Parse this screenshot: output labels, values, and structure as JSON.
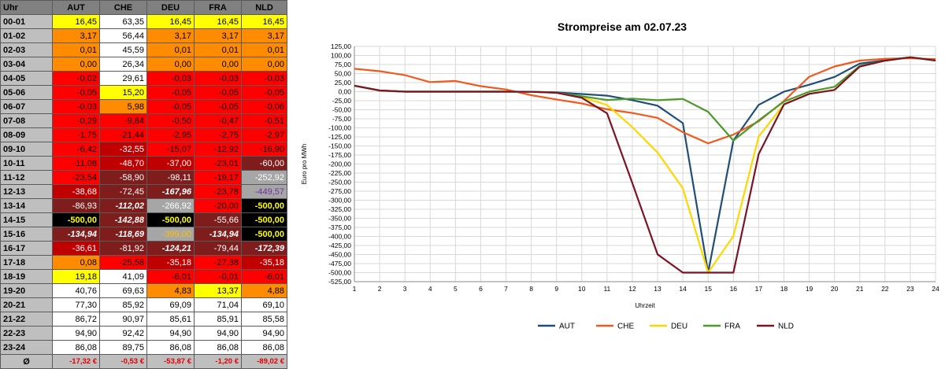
{
  "table": {
    "corner": "Uhr",
    "columns": [
      "AUT",
      "CHE",
      "DEU",
      "FRA",
      "NLD"
    ],
    "rows": [
      {
        "h": "00-01",
        "v": [
          "16,45",
          "63,35",
          "16,45",
          "16,45",
          "16,45"
        ],
        "c": [
          "yellow",
          "white",
          "yellow",
          "yellow",
          "yellow"
        ]
      },
      {
        "h": "01-02",
        "v": [
          "3,17",
          "56,44",
          "3,17",
          "3,17",
          "3,17"
        ],
        "c": [
          "orange",
          "white",
          "orange",
          "orange",
          "orange"
        ]
      },
      {
        "h": "02-03",
        "v": [
          "0,01",
          "45,59",
          "0,01",
          "0,01",
          "0,01"
        ],
        "c": [
          "orange",
          "white",
          "orange",
          "orange",
          "orange"
        ]
      },
      {
        "h": "03-04",
        "v": [
          "0,00",
          "26,34",
          "0,00",
          "0,00",
          "0,00"
        ],
        "c": [
          "orange",
          "white",
          "orange",
          "orange",
          "orange"
        ]
      },
      {
        "h": "04-05",
        "v": [
          "-0,02",
          "29,61",
          "-0,03",
          "-0,03",
          "-0,03"
        ],
        "c": [
          "red",
          "white",
          "red",
          "red",
          "red"
        ]
      },
      {
        "h": "05-06",
        "v": [
          "-0,05",
          "15,20",
          "-0,05",
          "-0,05",
          "-0,05"
        ],
        "c": [
          "red",
          "yellow",
          "red",
          "red",
          "red"
        ]
      },
      {
        "h": "06-07",
        "v": [
          "-0,03",
          "5,98",
          "-0,05",
          "-0,05",
          "-0,06"
        ],
        "c": [
          "red",
          "orange",
          "red",
          "red",
          "red"
        ]
      },
      {
        "h": "07-08",
        "v": [
          "-0,29",
          "-9,84",
          "-0,50",
          "-0,47",
          "-0,51"
        ],
        "c": [
          "red",
          "red",
          "red",
          "red",
          "red"
        ]
      },
      {
        "h": "08-09",
        "v": [
          "-1,75",
          "-21,44",
          "-2,95",
          "-2,75",
          "-2,97"
        ],
        "c": [
          "red",
          "red",
          "red",
          "red",
          "red"
        ]
      },
      {
        "h": "09-10",
        "v": [
          "-6,42",
          "-32,55",
          "-15,07",
          "-12,92",
          "-16,90"
        ],
        "c": [
          "red",
          "dred",
          "red",
          "red",
          "red"
        ]
      },
      {
        "h": "10-11",
        "v": [
          "-11,08",
          "-48,70",
          "-37,00",
          "-23,01",
          "-60,00"
        ],
        "c": [
          "red",
          "dred",
          "dred",
          "red",
          "maroon"
        ]
      },
      {
        "h": "11-12",
        "v": [
          "-23,54",
          "-58,90",
          "-98,11",
          "-19,17",
          "-252,92"
        ],
        "c": [
          "red",
          "maroon",
          "maroon",
          "red",
          "gray"
        ]
      },
      {
        "h": "12-13",
        "v": [
          "-38,68",
          "-72,45",
          "-167,96",
          "-23,78",
          "-449,57"
        ],
        "c": [
          "dred",
          "maroon",
          "maroonb",
          "red",
          "grayp"
        ]
      },
      {
        "h": "13-14",
        "v": [
          "-86,93",
          "-112,02",
          "-266,92",
          "-20,00",
          "-500,00"
        ],
        "c": [
          "maroon",
          "maroonb",
          "gray",
          "red",
          "black"
        ]
      },
      {
        "h": "14-15",
        "v": [
          "-500,00",
          "-142,88",
          "-500,00",
          "-55,66",
          "-500,00"
        ],
        "c": [
          "black",
          "maroonb",
          "black",
          "maroon",
          "black"
        ]
      },
      {
        "h": "15-16",
        "v": [
          "-134,94",
          "-118,69",
          "-399,00",
          "-134,94",
          "-500,00"
        ],
        "c": [
          "maroonb",
          "maroonb",
          "grayo",
          "maroonb",
          "black"
        ]
      },
      {
        "h": "16-17",
        "v": [
          "-36,61",
          "-81,92",
          "-124,21",
          "-79,44",
          "-172,39"
        ],
        "c": [
          "dred",
          "maroon",
          "maroonb",
          "maroon",
          "maroonb"
        ]
      },
      {
        "h": "17-18",
        "v": [
          "0,08",
          "-25,58",
          "-35,18",
          "-27,38",
          "-35,18"
        ],
        "c": [
          "orange",
          "red",
          "dred",
          "red",
          "dred"
        ]
      },
      {
        "h": "18-19",
        "v": [
          "19,18",
          "41,09",
          "-6,01",
          "-0,01",
          "-6,01"
        ],
        "c": [
          "yellow",
          "white",
          "red",
          "red",
          "red"
        ]
      },
      {
        "h": "19-20",
        "v": [
          "40,76",
          "69,63",
          "4,83",
          "13,37",
          "4,88"
        ],
        "c": [
          "white",
          "white",
          "orange",
          "yellow",
          "orange"
        ]
      },
      {
        "h": "20-21",
        "v": [
          "77,30",
          "85,92",
          "69,09",
          "71,04",
          "69,10"
        ],
        "c": [
          "white",
          "white",
          "white",
          "white",
          "white"
        ]
      },
      {
        "h": "21-22",
        "v": [
          "86,72",
          "90,97",
          "85,61",
          "85,91",
          "85,58"
        ],
        "c": [
          "white",
          "white",
          "white",
          "white",
          "white"
        ]
      },
      {
        "h": "22-23",
        "v": [
          "94,90",
          "92,42",
          "94,90",
          "94,90",
          "94,90"
        ],
        "c": [
          "white",
          "white",
          "white",
          "white",
          "white"
        ]
      },
      {
        "h": "23-24",
        "v": [
          "86,08",
          "89,75",
          "86,08",
          "86,08",
          "86,08"
        ],
        "c": [
          "white",
          "white",
          "white",
          "white",
          "white"
        ]
      }
    ],
    "avg_label": "Ø",
    "avg": [
      "-17,32 €",
      "-0,53 €",
      "-53,87 €",
      "-1,20 €",
      "-89,02 €"
    ]
  },
  "chart_data": {
    "type": "line",
    "title": "Strompreise am 02.07.23",
    "xlabel": "Uhrzeit",
    "ylabel": "Euro pro MWh",
    "x": [
      1,
      2,
      3,
      4,
      5,
      6,
      7,
      8,
      9,
      10,
      11,
      12,
      13,
      14,
      15,
      16,
      17,
      18,
      19,
      20,
      21,
      22,
      23,
      24
    ],
    "ylim": [
      -525,
      125
    ],
    "ytick_step": 25,
    "grid": true,
    "legend_position": "bottom",
    "series": [
      {
        "name": "AUT",
        "color": "#1f4e79",
        "values": [
          16.45,
          3.17,
          0.01,
          0,
          -0.02,
          -0.05,
          -0.03,
          -0.29,
          -1.75,
          -6.42,
          -11.08,
          -23.54,
          -38.68,
          -86.93,
          -500,
          -134.94,
          -36.61,
          0.08,
          19.18,
          40.76,
          77.3,
          86.72,
          94.9,
          86.08
        ]
      },
      {
        "name": "CHE",
        "color": "#f05a1e",
        "values": [
          63.35,
          56.44,
          45.59,
          26.34,
          29.61,
          15.2,
          5.98,
          -9.84,
          -21.44,
          -32.55,
          -48.7,
          -58.9,
          -72.45,
          -112.02,
          -142.88,
          -118.69,
          -81.92,
          -25.58,
          41.09,
          69.63,
          85.92,
          90.97,
          92.42,
          89.75
        ]
      },
      {
        "name": "DEU",
        "color": "#ffd700",
        "values": [
          16.45,
          3.17,
          0.01,
          0,
          -0.03,
          -0.05,
          -0.05,
          -0.5,
          -2.95,
          -15.07,
          -37,
          -98.11,
          -167.96,
          -266.92,
          -500,
          -399,
          -124.21,
          -35.18,
          -6.01,
          4.83,
          69.09,
          85.61,
          94.9,
          86.08
        ]
      },
      {
        "name": "FRA",
        "color": "#4d9a2a",
        "values": [
          16.45,
          3.17,
          0.01,
          0,
          -0.03,
          -0.05,
          -0.05,
          -0.47,
          -2.75,
          -12.92,
          -23.01,
          -19.17,
          -23.78,
          -20,
          -55.66,
          -134.94,
          -79.44,
          -27.38,
          -0.01,
          13.37,
          71.04,
          85.91,
          94.9,
          86.08
        ]
      },
      {
        "name": "NLD",
        "color": "#7b1426",
        "values": [
          16.45,
          3.17,
          0.01,
          0,
          -0.03,
          -0.05,
          -0.06,
          -0.51,
          -2.97,
          -16.9,
          -60,
          -252.92,
          -449.57,
          -500,
          -500,
          -500,
          -172.39,
          -35.18,
          -6.01,
          4.88,
          69.1,
          85.58,
          94.9,
          86.08
        ]
      }
    ]
  },
  "colors": {
    "white": "#ffffff",
    "yellow": "#ffff00",
    "orange": "#ff8c00",
    "red": "#ff0000",
    "dred": "#c00000",
    "maroon": "#7f1d1d",
    "gray": "#a6a6a6",
    "black": "#000000",
    "header": "#808080",
    "rowhead": "#bfbfbf",
    "avg_text": "#e00000"
  }
}
